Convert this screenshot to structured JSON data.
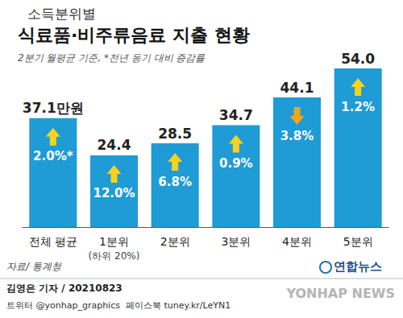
{
  "chart_data": {
    "type": "bar",
    "title_prefix": "소득분위별",
    "title": "식료품·비주류음료 지출 현황",
    "subtitle": "2분기 월평균 기준, *전년 동기 대비 증감률",
    "categories": [
      "전체 평균",
      "1분위",
      "2분위",
      "3분위",
      "4분위",
      "5분위"
    ],
    "category_notes": [
      null,
      "(하위 20%)",
      null,
      null,
      null,
      null
    ],
    "values": [
      37.1,
      24.4,
      28.5,
      34.7,
      44.1,
      54.0
    ],
    "value_labels": [
      "37.1만원",
      "24.4",
      "28.5",
      "34.7",
      "44.1",
      "54.0"
    ],
    "changes": [
      2.0,
      12.0,
      6.8,
      0.9,
      -3.8,
      1.2
    ],
    "change_labels": [
      "2.0%*",
      "12.0%",
      "6.8%",
      "0.9%",
      "3.8%",
      "1.2%"
    ],
    "color": "#1f9bd6",
    "ylim": [
      0,
      54
    ],
    "grid": false,
    "tick_labels": "x",
    "data_labels": true,
    "source": "자료/ 통계청",
    "logo": "연합뉴스",
    "credit": "김영은 기자 / 20210823",
    "social": "트위터 @yonhap_graphics  페이스북 tuney.kr/LeYN1",
    "watermark": "YONHAP NEWS"
  }
}
